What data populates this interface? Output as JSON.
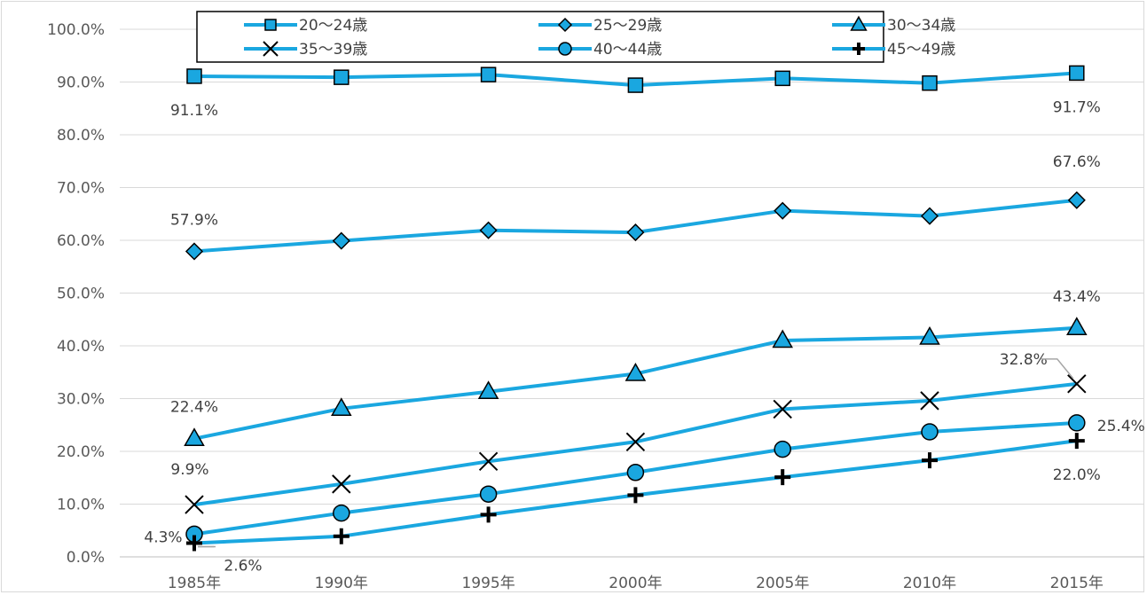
{
  "chart_data": {
    "type": "line",
    "categories": [
      "1985年",
      "1990年",
      "1995年",
      "2000年",
      "2005年",
      "2010年",
      "2015年"
    ],
    "y_axis": {
      "min": 0,
      "max": 100,
      "step": 10,
      "tick_labels": [
        "0.0%",
        "10.0%",
        "20.0%",
        "30.0%",
        "40.0%",
        "50.0%",
        "60.0%",
        "70.0%",
        "80.0%",
        "90.0%",
        "100.0%"
      ]
    },
    "grid": "horizontal",
    "legend_position": "top",
    "line_color": "#1aa7e0",
    "marker_fill": "#1aa7e0",
    "marker_stroke": "#000000",
    "series": [
      {
        "name": "20～24歳",
        "marker": "square",
        "values": [
          91.1,
          90.9,
          91.4,
          89.4,
          90.7,
          89.8,
          91.7
        ],
        "labels": [
          {
            "index": 0,
            "text": "91.1%"
          },
          {
            "index": 6,
            "text": "91.7%"
          }
        ]
      },
      {
        "name": "25～29歳",
        "marker": "diamond",
        "values": [
          57.9,
          59.9,
          61.9,
          61.5,
          65.6,
          64.6,
          67.6
        ],
        "labels": [
          {
            "index": 0,
            "text": "57.9%"
          },
          {
            "index": 6,
            "text": "67.6%"
          }
        ]
      },
      {
        "name": "30～34歳",
        "marker": "triangle",
        "values": [
          22.4,
          28.1,
          31.3,
          34.7,
          41.0,
          41.6,
          43.4
        ],
        "labels": [
          {
            "index": 0,
            "text": "22.4%"
          },
          {
            "index": 6,
            "text": "43.4%"
          }
        ]
      },
      {
        "name": "35～39歳",
        "marker": "x",
        "values": [
          9.9,
          13.8,
          18.1,
          21.8,
          28.0,
          29.6,
          32.8
        ],
        "labels": [
          {
            "index": 0,
            "text": "9.9%"
          },
          {
            "index": 6,
            "text": "32.8%"
          }
        ]
      },
      {
        "name": "40～44歳",
        "marker": "circle",
        "values": [
          4.3,
          8.3,
          11.9,
          16.0,
          20.4,
          23.7,
          25.4
        ],
        "labels": [
          {
            "index": 0,
            "text": "4.3%"
          },
          {
            "index": 6,
            "text": "25.4%"
          }
        ]
      },
      {
        "name": "45～49歳",
        "marker": "plus",
        "values": [
          2.6,
          3.9,
          8.0,
          11.7,
          15.1,
          18.3,
          22.0
        ],
        "labels": [
          {
            "index": 0,
            "text": "2.6%"
          },
          {
            "index": 6,
            "text": "22.0%"
          }
        ]
      }
    ]
  }
}
